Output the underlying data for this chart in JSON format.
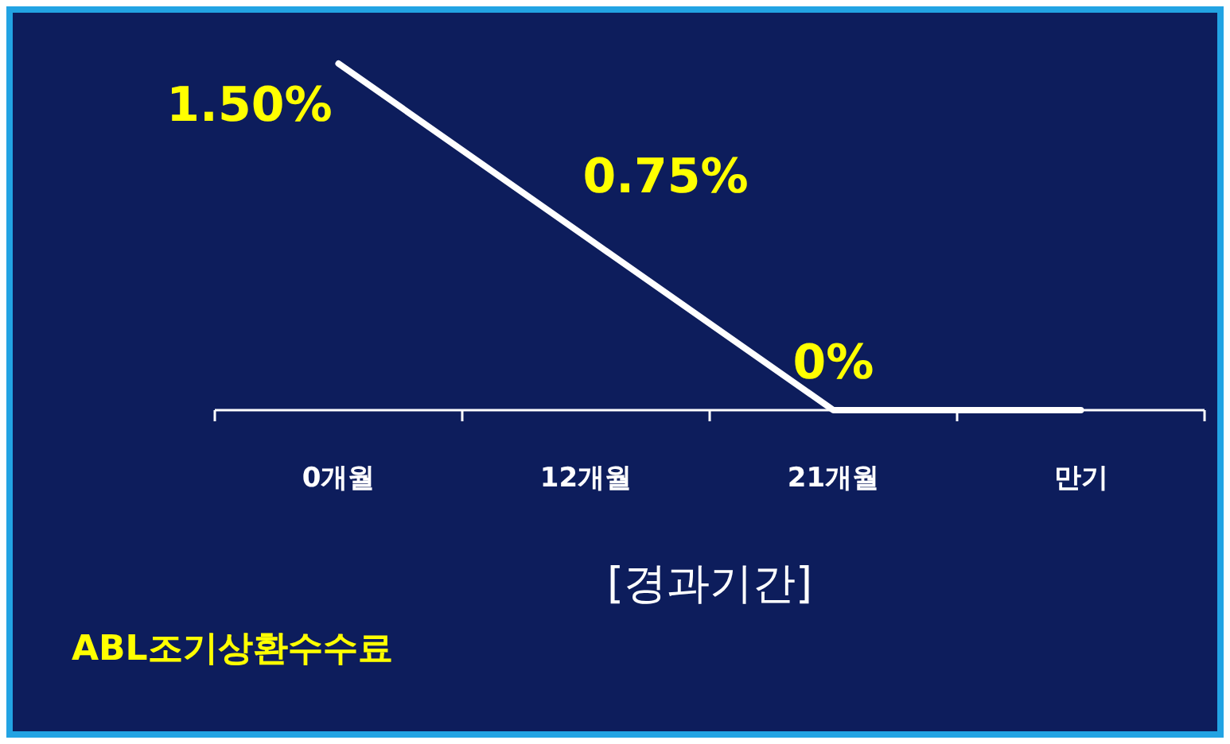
{
  "chart_data": {
    "type": "line",
    "categories": [
      "0개월",
      "12개월",
      "21개월",
      "만기"
    ],
    "series": [
      {
        "color": "#ffffff",
        "values": [
          1.5,
          0.75,
          0,
          0
        ],
        "value_labels": [
          "1.50%",
          "0.75%",
          "0%",
          null
        ]
      }
    ],
    "xlabel": "[경과기간]",
    "annotations": [
      "ABL조기상환수수료"
    ]
  }
}
